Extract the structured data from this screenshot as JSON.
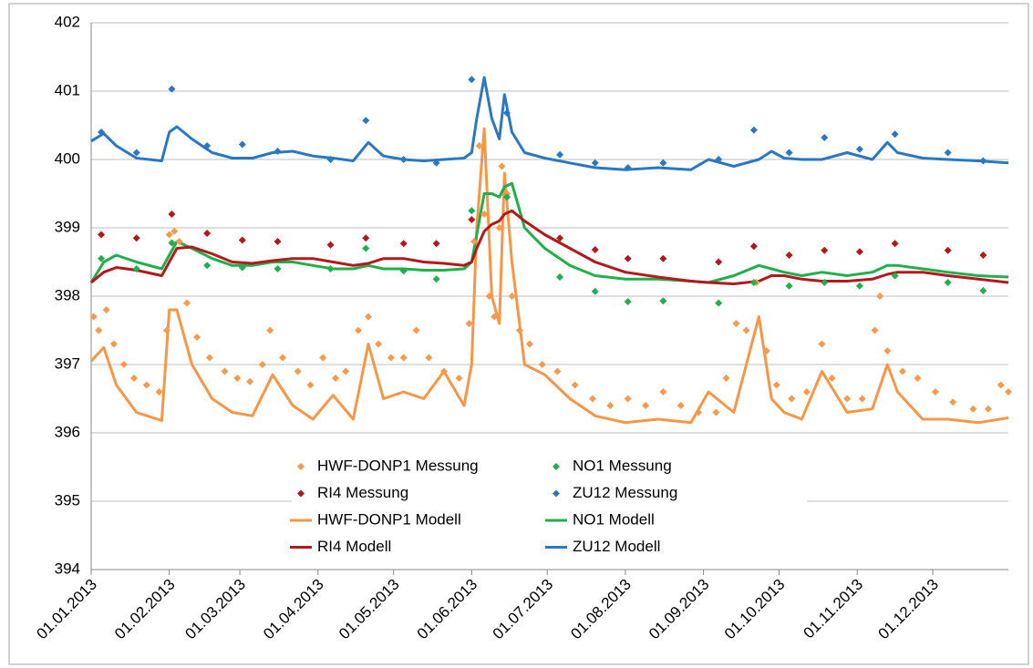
{
  "chart_data": {
    "type": "line",
    "xlim": [
      "01.01.2013",
      "31.12.2013"
    ],
    "xticks": [
      "01.01.2013",
      "01.02.2013",
      "01.03.2013",
      "01.04.2013",
      "01.05.2013",
      "01.06.2013",
      "01.07.2013",
      "01.08.2013",
      "01.09.2013",
      "01.10.2013",
      "01.11.2013",
      "01.12.2013"
    ],
    "ylim": [
      394,
      402
    ],
    "yticks": [
      394,
      395,
      396,
      397,
      398,
      399,
      400,
      401,
      402
    ],
    "grid": true,
    "legend": "bottom",
    "series": [
      {
        "name": "HWF-DONP1 Messung",
        "type": "scatter",
        "color": "#f79a4b",
        "x": [
          "02.01.2013",
          "04.01.2013",
          "07.01.2013",
          "10.01.2013",
          "14.01.2013",
          "18.01.2013",
          "23.01.2013",
          "28.01.2013",
          "31.01.2013",
          "01.02.2013",
          "03.02.2013",
          "05.02.2013",
          "08.02.2013",
          "12.02.2013",
          "17.02.2013",
          "23.02.2013",
          "28.02.2013",
          "05.03.2013",
          "10.03.2013",
          "13.03.2013",
          "18.03.2013",
          "24.03.2013",
          "29.03.2013",
          "03.04.2013",
          "08.04.2013",
          "12.04.2013",
          "17.04.2013",
          "21.04.2013",
          "25.04.2013",
          "30.04.2013",
          "05.05.2013",
          "10.05.2013",
          "15.05.2013",
          "21.05.2013",
          "27.05.2013",
          "31.05.2013",
          "02.06.2013",
          "04.06.2013",
          "06.06.2013",
          "08.06.2013",
          "10.06.2013",
          "12.06.2013",
          "13.06.2013",
          "15.06.2013",
          "17.06.2013",
          "20.06.2013",
          "24.06.2013",
          "29.06.2013",
          "05.07.2013",
          "12.07.2013",
          "19.07.2013",
          "26.07.2013",
          "02.08.2013",
          "09.08.2013",
          "16.08.2013",
          "23.08.2013",
          "30.08.2013",
          "06.09.2013",
          "10.09.2013",
          "14.09.2013",
          "18.09.2013",
          "22.09.2013",
          "26.09.2013",
          "30.09.2013",
          "06.10.2013",
          "12.10.2013",
          "18.10.2013",
          "22.10.2013",
          "28.10.2013",
          "03.11.2013",
          "08.11.2013",
          "10.11.2013",
          "13.11.2013",
          "19.11.2013",
          "25.11.2013",
          "02.12.2013",
          "09.12.2013",
          "17.12.2013",
          "23.12.2013",
          "28.12.2013",
          "31.12.2013"
        ],
        "values": [
          397.7,
          397.5,
          397.8,
          397.3,
          397.0,
          396.8,
          396.7,
          396.6,
          397.5,
          398.9,
          398.95,
          398.8,
          397.9,
          397.4,
          397.1,
          396.9,
          396.8,
          396.75,
          397.0,
          397.5,
          397.1,
          396.9,
          396.7,
          397.1,
          396.8,
          396.9,
          397.5,
          397.7,
          397.3,
          397.1,
          397.1,
          397.5,
          397.1,
          396.9,
          396.8,
          397.6,
          398.8,
          400.2,
          399.2,
          398.0,
          397.7,
          399.0,
          399.9,
          399.5,
          398.0,
          397.5,
          397.3,
          397.0,
          396.9,
          396.7,
          396.5,
          396.4,
          396.5,
          396.4,
          396.6,
          396.4,
          396.3,
          396.3,
          396.8,
          397.6,
          397.5,
          398.2,
          397.2,
          396.7,
          396.5,
          396.6,
          397.3,
          396.8,
          396.5,
          396.5,
          397.5,
          398.0,
          397.2,
          396.9,
          396.8,
          396.6,
          396.45,
          396.35,
          396.35,
          396.7,
          396.6
        ]
      },
      {
        "name": "NO1 Messung",
        "type": "scatter",
        "color": "#1fb04b",
        "x": [
          "05.01.2013",
          "19.01.2013",
          "02.02.2013",
          "16.02.2013",
          "02.03.2013",
          "16.03.2013",
          "06.04.2013",
          "20.04.2013",
          "05.05.2013",
          "18.05.2013",
          "01.06.2013",
          "15.06.2013",
          "06.07.2013",
          "20.07.2013",
          "02.08.2013",
          "16.08.2013",
          "07.09.2013",
          "21.09.2013",
          "05.10.2013",
          "19.10.2013",
          "02.11.2013",
          "16.11.2013",
          "07.12.2013",
          "21.12.2013"
        ],
        "values": [
          398.55,
          398.4,
          398.78,
          398.45,
          398.42,
          398.4,
          398.4,
          398.7,
          398.37,
          398.25,
          399.25,
          399.45,
          398.28,
          398.07,
          397.92,
          397.93,
          397.9,
          398.2,
          398.15,
          398.2,
          398.15,
          398.3,
          398.2,
          398.08
        ]
      },
      {
        "name": "RI4 Messung",
        "type": "scatter",
        "color": "#b3181c",
        "x": [
          "05.01.2013",
          "19.01.2013",
          "02.02.2013",
          "16.02.2013",
          "02.03.2013",
          "16.03.2013",
          "06.04.2013",
          "20.04.2013",
          "05.05.2013",
          "18.05.2013",
          "01.06.2013",
          "06.07.2013",
          "20.07.2013",
          "02.08.2013",
          "16.08.2013",
          "07.09.2013",
          "21.09.2013",
          "05.10.2013",
          "19.10.2013",
          "02.11.2013",
          "16.11.2013",
          "07.12.2013",
          "21.12.2013"
        ],
        "values": [
          398.9,
          398.85,
          399.2,
          398.92,
          398.82,
          398.8,
          398.75,
          398.85,
          398.77,
          398.77,
          399.12,
          398.85,
          398.68,
          398.55,
          398.55,
          398.5,
          398.73,
          398.6,
          398.67,
          398.65,
          398.77,
          398.67,
          398.6
        ]
      },
      {
        "name": "ZU12 Messung",
        "type": "scatter",
        "color": "#2a78c2",
        "x": [
          "05.01.2013",
          "19.01.2013",
          "02.02.2013",
          "16.02.2013",
          "02.03.2013",
          "16.03.2013",
          "06.04.2013",
          "20.04.2013",
          "05.05.2013",
          "18.05.2013",
          "01.06.2013",
          "15.06.2013",
          "06.07.2013",
          "20.07.2013",
          "02.08.2013",
          "16.08.2013",
          "07.09.2013",
          "21.09.2013",
          "05.10.2013",
          "19.10.2013",
          "02.11.2013",
          "16.11.2013",
          "07.12.2013",
          "21.12.2013"
        ],
        "values": [
          400.4,
          400.1,
          401.03,
          400.2,
          400.22,
          400.12,
          400.0,
          400.57,
          400.0,
          399.95,
          401.17,
          400.68,
          400.07,
          399.95,
          399.88,
          399.95,
          400.0,
          400.43,
          400.1,
          400.32,
          400.15,
          400.37,
          400.1,
          399.98
        ]
      },
      {
        "name": "HWF-DONP1 Modell",
        "type": "line",
        "color": "#f79646",
        "x": [
          "01.01.2013",
          "06.01.2013",
          "11.01.2013",
          "19.01.2013",
          "29.01.2013",
          "01.02.2013",
          "04.02.2013",
          "10.02.2013",
          "18.02.2013",
          "26.02.2013",
          "06.03.2013",
          "14.03.2013",
          "22.03.2013",
          "30.03.2013",
          "07.04.2013",
          "15.04.2013",
          "21.04.2013",
          "27.04.2013",
          "05.05.2013",
          "13.05.2013",
          "21.05.2013",
          "29.05.2013",
          "01.06.2013",
          "03.06.2013",
          "06.06.2013",
          "09.06.2013",
          "12.06.2013",
          "14.06.2013",
          "17.06.2013",
          "22.06.2013",
          "30.06.2013",
          "10.07.2013",
          "20.07.2013",
          "01.08.2013",
          "14.08.2013",
          "27.08.2013",
          "03.09.2013",
          "13.09.2013",
          "23.09.2013",
          "28.09.2013",
          "03.10.2013",
          "10.10.2013",
          "18.10.2013",
          "28.10.2013",
          "07.11.2013",
          "13.11.2013",
          "17.11.2013",
          "27.11.2013",
          "07.12.2013",
          "19.12.2013",
          "31.12.2013"
        ],
        "values": [
          397.05,
          397.25,
          396.7,
          396.3,
          396.18,
          397.8,
          397.8,
          397.0,
          396.5,
          396.3,
          396.25,
          396.85,
          396.4,
          396.2,
          396.55,
          396.2,
          397.3,
          396.5,
          396.6,
          396.5,
          396.9,
          396.4,
          397.0,
          399.0,
          400.45,
          398.0,
          397.6,
          399.8,
          398.5,
          397.0,
          396.85,
          396.5,
          396.25,
          396.15,
          396.2,
          396.15,
          396.6,
          396.3,
          397.7,
          396.5,
          396.3,
          396.2,
          396.9,
          396.3,
          396.35,
          397.0,
          396.6,
          396.2,
          396.2,
          396.15,
          396.22
        ]
      },
      {
        "name": "NO1 Modell",
        "type": "line",
        "color": "#1fb04b",
        "x": [
          "01.01.2013",
          "06.01.2013",
          "11.01.2013",
          "19.01.2013",
          "29.01.2013",
          "01.02.2013",
          "04.02.2013",
          "10.02.2013",
          "18.02.2013",
          "26.02.2013",
          "06.03.2013",
          "14.03.2013",
          "22.03.2013",
          "30.03.2013",
          "07.04.2013",
          "15.04.2013",
          "21.04.2013",
          "27.04.2013",
          "05.05.2013",
          "13.05.2013",
          "21.05.2013",
          "29.05.2013",
          "01.06.2013",
          "03.06.2013",
          "06.06.2013",
          "09.06.2013",
          "12.06.2013",
          "14.06.2013",
          "17.06.2013",
          "22.06.2013",
          "30.06.2013",
          "10.07.2013",
          "20.07.2013",
          "01.08.2013",
          "14.08.2013",
          "27.08.2013",
          "03.09.2013",
          "13.09.2013",
          "23.09.2013",
          "28.09.2013",
          "03.10.2013",
          "10.10.2013",
          "18.10.2013",
          "28.10.2013",
          "07.11.2013",
          "13.11.2013",
          "17.11.2013",
          "27.11.2013",
          "07.12.2013",
          "19.12.2013",
          "31.12.2013"
        ],
        "values": [
          398.2,
          398.5,
          398.6,
          398.5,
          398.4,
          398.6,
          398.8,
          398.7,
          398.55,
          398.45,
          398.45,
          398.5,
          398.5,
          398.45,
          398.4,
          398.4,
          398.45,
          398.4,
          398.4,
          398.38,
          398.38,
          398.4,
          398.5,
          398.9,
          399.5,
          399.5,
          399.45,
          399.6,
          399.65,
          399.0,
          398.7,
          398.45,
          398.3,
          398.25,
          398.25,
          398.22,
          398.2,
          398.3,
          398.45,
          398.4,
          398.35,
          398.3,
          398.35,
          398.3,
          398.35,
          398.45,
          398.45,
          398.4,
          398.35,
          398.3,
          398.28
        ]
      },
      {
        "name": "RI4 Modell",
        "type": "line",
        "color": "#b3181c",
        "x": [
          "01.01.2013",
          "06.01.2013",
          "11.01.2013",
          "19.01.2013",
          "29.01.2013",
          "01.02.2013",
          "04.02.2013",
          "10.02.2013",
          "18.02.2013",
          "26.02.2013",
          "06.03.2013",
          "14.03.2013",
          "22.03.2013",
          "30.03.2013",
          "07.04.2013",
          "15.04.2013",
          "21.04.2013",
          "27.04.2013",
          "05.05.2013",
          "13.05.2013",
          "21.05.2013",
          "29.05.2013",
          "01.06.2013",
          "03.06.2013",
          "06.06.2013",
          "09.06.2013",
          "12.06.2013",
          "14.06.2013",
          "17.06.2013",
          "22.06.2013",
          "30.06.2013",
          "10.07.2013",
          "20.07.2013",
          "01.08.2013",
          "14.08.2013",
          "27.08.2013",
          "03.09.2013",
          "13.09.2013",
          "23.09.2013",
          "28.09.2013",
          "03.10.2013",
          "10.10.2013",
          "18.10.2013",
          "28.10.2013",
          "07.11.2013",
          "13.11.2013",
          "17.11.2013",
          "27.11.2013",
          "07.12.2013",
          "19.12.2013",
          "31.12.2013"
        ],
        "values": [
          398.2,
          398.35,
          398.42,
          398.38,
          398.3,
          398.5,
          398.7,
          398.72,
          398.62,
          398.5,
          398.48,
          398.52,
          398.55,
          398.55,
          398.5,
          398.45,
          398.48,
          398.55,
          398.55,
          398.5,
          398.48,
          398.45,
          398.5,
          398.7,
          398.95,
          399.05,
          399.1,
          399.2,
          399.25,
          399.1,
          398.9,
          398.7,
          398.5,
          398.35,
          398.28,
          398.22,
          398.2,
          398.18,
          398.22,
          398.3,
          398.3,
          398.25,
          398.22,
          398.22,
          398.25,
          398.32,
          398.35,
          398.35,
          398.3,
          398.25,
          398.2
        ]
      },
      {
        "name": "ZU12 Modell",
        "type": "line",
        "color": "#2a78c2",
        "x": [
          "01.01.2013",
          "06.01.2013",
          "11.01.2013",
          "19.01.2013",
          "29.01.2013",
          "01.02.2013",
          "04.02.2013",
          "10.02.2013",
          "18.02.2013",
          "26.02.2013",
          "06.03.2013",
          "14.03.2013",
          "22.03.2013",
          "30.03.2013",
          "07.04.2013",
          "15.04.2013",
          "21.04.2013",
          "27.04.2013",
          "05.05.2013",
          "13.05.2013",
          "21.05.2013",
          "29.05.2013",
          "01.06.2013",
          "03.06.2013",
          "06.06.2013",
          "09.06.2013",
          "12.06.2013",
          "14.06.2013",
          "17.06.2013",
          "22.06.2013",
          "30.06.2013",
          "10.07.2013",
          "20.07.2013",
          "01.08.2013",
          "14.08.2013",
          "27.08.2013",
          "03.09.2013",
          "13.09.2013",
          "23.09.2013",
          "28.09.2013",
          "03.10.2013",
          "10.10.2013",
          "18.10.2013",
          "28.10.2013",
          "07.11.2013",
          "13.11.2013",
          "17.11.2013",
          "27.11.2013",
          "07.12.2013",
          "19.12.2013",
          "31.12.2013"
        ],
        "values": [
          400.27,
          400.38,
          400.2,
          400.02,
          399.98,
          400.4,
          400.48,
          400.3,
          400.1,
          400.02,
          400.02,
          400.1,
          400.12,
          400.05,
          400.02,
          399.98,
          400.25,
          400.05,
          400.0,
          399.98,
          400.0,
          400.02,
          400.1,
          400.6,
          401.2,
          400.6,
          400.3,
          400.95,
          400.4,
          400.1,
          400.02,
          399.95,
          399.88,
          399.85,
          399.88,
          399.85,
          400.0,
          399.9,
          400.0,
          400.12,
          400.02,
          400.0,
          400.0,
          400.1,
          400.0,
          400.25,
          400.1,
          400.02,
          400.0,
          399.98,
          399.95
        ]
      }
    ]
  }
}
